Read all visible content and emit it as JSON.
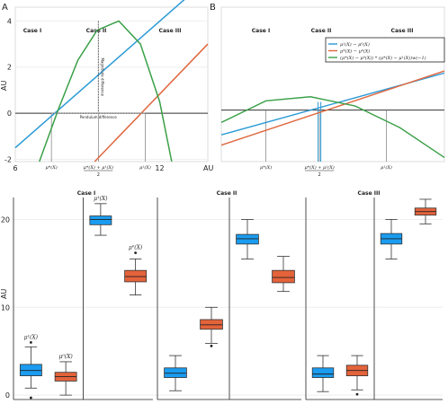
{
  "chart_data": [
    {
      "type": "line",
      "panel_letter": "A",
      "xlim": [
        6,
        14
      ],
      "ylim": [
        -2.1,
        4.6
      ],
      "ylabel": "AU",
      "xlabel": "AU",
      "yticks": [
        -2,
        0,
        2,
        4
      ],
      "xtick_labels": [
        {
          "x": 6,
          "label": "6"
        },
        {
          "x": 12,
          "label": "12"
        }
      ],
      "case_labels": [
        "Case I",
        "Case II",
        "Case III"
      ],
      "series": [
        {
          "color": "#2b9ad6",
          "x": [
            6,
            13.1
          ],
          "y": [
            -1.5,
            5.0
          ]
        },
        {
          "color": "#e0663e",
          "x": [
            9.3,
            14.0
          ],
          "y": [
            -2.1,
            3.0
          ]
        },
        {
          "color": "#3aa047",
          "x": [
            7.0,
            7.8,
            8.6,
            9.4,
            10.3,
            11.2,
            12.0,
            12.5
          ],
          "y": [
            -2.1,
            0.2,
            2.3,
            3.6,
            4.0,
            3.0,
            0.5,
            -2.1
          ]
        }
      ],
      "annotations": {
        "magnitude": "Magnitude difference",
        "pendulum": "Pendulum difference"
      },
      "markers": [
        {
          "x": 7.5,
          "label": "μ*(X)"
        },
        {
          "x": 9.45,
          "label": "μ*(X) + μ¹(X)",
          "denominator": "2"
        },
        {
          "x": 11.4,
          "label": "μ¹(X)"
        }
      ]
    },
    {
      "type": "line",
      "panel_letter": "B",
      "xlim": [
        0,
        10
      ],
      "ylim": [
        -2.5,
        5.0
      ],
      "case_labels": [
        "Case I",
        "Case II",
        "Case III"
      ],
      "legend": [
        "μ¹(X) − μ⁰(X)",
        "μ*(X) − μ⁰(X)",
        "(μ*(X) − μ⁰(X)) * (μ*(X) − μ¹(X))w(−1)"
      ],
      "legend_position": "top-right",
      "series": [
        {
          "color": "#2b9ad6",
          "x": [
            0,
            10
          ],
          "y": [
            -1.2,
            1.8
          ]
        },
        {
          "color": "#e0663e",
          "x": [
            0,
            10
          ],
          "y": [
            -1.7,
            1.9
          ]
        },
        {
          "color": "#3aa047",
          "x": [
            0,
            2.0,
            4.0,
            6.0,
            8.0,
            10.0
          ],
          "y": [
            -0.6,
            0.45,
            0.65,
            0.2,
            -0.85,
            -2.3
          ]
        }
      ],
      "markers": [
        {
          "x": 2.0,
          "label": "μ*(X)"
        },
        {
          "x": 4.4,
          "label": "μ*(X) + μ¹(X)",
          "denominator": "2"
        },
        {
          "x": 7.4,
          "label": "μ¹(X)"
        }
      ]
    },
    {
      "type": "box",
      "ylabel": "AU",
      "ylim": [
        -0.5,
        22.5
      ],
      "yticks": [
        0,
        10,
        20
      ],
      "panels": [
        {
          "title": "Case I",
          "boxes": [
            {
              "label": "μ¹(X)",
              "color": "#1a9cf0",
              "whislo": 0.8,
              "q1": 2.2,
              "med": 2.8,
              "q3": 3.5,
              "whishi": 5.5,
              "fliers": [
                6.0,
                -0.3
              ]
            },
            {
              "label": "μ⁰(X)",
              "color": "#e4633b",
              "whislo": 0.0,
              "q1": 1.6,
              "med": 2.1,
              "q3": 2.6,
              "whishi": 3.8,
              "fliers": []
            },
            {
              "label": "μ¹(X)",
              "color": "#1a9cf0",
              "whislo": 18.2,
              "q1": 19.4,
              "med": 20.0,
              "q3": 20.4,
              "whishi": 21.8,
              "fliers": []
            },
            {
              "label": "μ⁰(X)",
              "color": "#e4633b",
              "whislo": 11.4,
              "q1": 12.9,
              "med": 13.5,
              "q3": 14.2,
              "whishi": 15.5,
              "fliers": [
                16.2
              ]
            }
          ]
        },
        {
          "title": "Case II",
          "boxes": [
            {
              "color": "#1a9cf0",
              "whislo": 0.5,
              "q1": 2.0,
              "med": 2.5,
              "q3": 3.1,
              "whishi": 4.5,
              "fliers": []
            },
            {
              "color": "#e4633b",
              "whislo": 5.9,
              "q1": 7.5,
              "med": 8.0,
              "q3": 8.6,
              "whishi": 10.0,
              "fliers": [
                5.6
              ]
            },
            {
              "color": "#1a9cf0",
              "whislo": 15.5,
              "q1": 17.2,
              "med": 17.8,
              "q3": 18.3,
              "whishi": 20.0,
              "fliers": []
            },
            {
              "color": "#e4633b",
              "whislo": 11.8,
              "q1": 12.8,
              "med": 13.4,
              "q3": 14.2,
              "whishi": 15.8,
              "fliers": []
            }
          ]
        },
        {
          "title": "Case III",
          "boxes": [
            {
              "color": "#1a9cf0",
              "whislo": 0.4,
              "q1": 2.0,
              "med": 2.4,
              "q3": 3.1,
              "whishi": 4.5,
              "fliers": []
            },
            {
              "color": "#e4633b",
              "whislo": 0.6,
              "q1": 2.2,
              "med": 2.8,
              "q3": 3.4,
              "whishi": 4.5,
              "fliers": [
                0.1
              ]
            },
            {
              "color": "#1a9cf0",
              "whislo": 15.5,
              "q1": 17.2,
              "med": 17.8,
              "q3": 18.4,
              "whishi": 20.0,
              "fliers": []
            },
            {
              "color": "#e4633b",
              "whislo": 19.5,
              "q1": 20.5,
              "med": 20.9,
              "q3": 21.3,
              "whishi": 22.3,
              "fliers": []
            }
          ]
        }
      ]
    }
  ]
}
